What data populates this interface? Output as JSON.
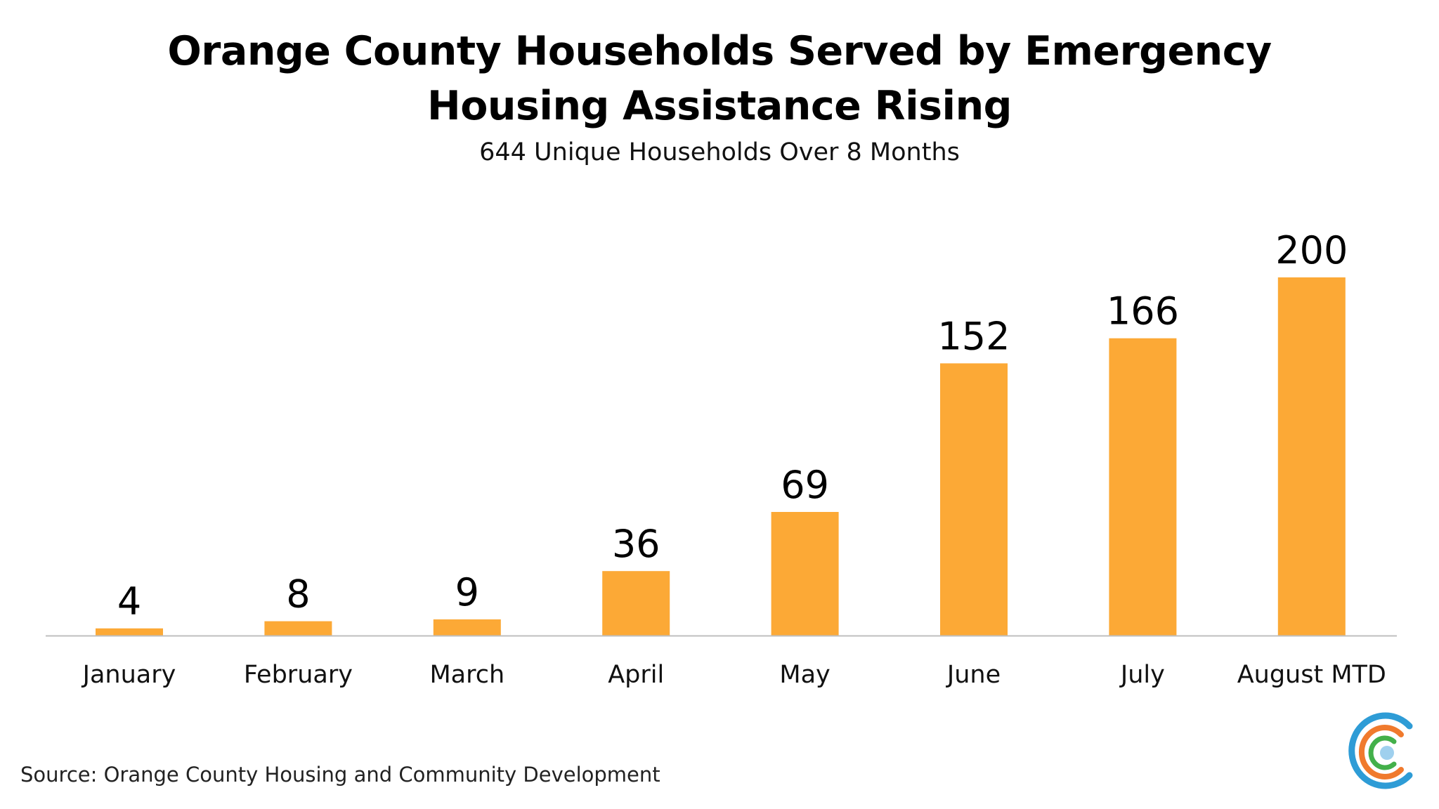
{
  "title": "Orange County Households Served by Emergency Housing Assistance Rising",
  "subtitle": "644 Unique Households Over 8 Months",
  "source": "Source: Orange County Housing and Community Development",
  "logo_icon": "brand-c-logo-icon",
  "colors": {
    "bar": "#FCA936",
    "axis": "#BFBFBF",
    "text": "#000000"
  },
  "chart_data": {
    "type": "bar",
    "categories": [
      "January",
      "February",
      "March",
      "April",
      "May",
      "June",
      "July",
      "August MTD"
    ],
    "values": [
      4,
      8,
      9,
      36,
      69,
      152,
      166,
      200
    ],
    "title": "Orange County Households Served by Emergency Housing Assistance Rising",
    "subtitle": "644 Unique Households Over 8 Months",
    "ylim": [
      0,
      200
    ],
    "grid": false,
    "data_labels": true
  }
}
